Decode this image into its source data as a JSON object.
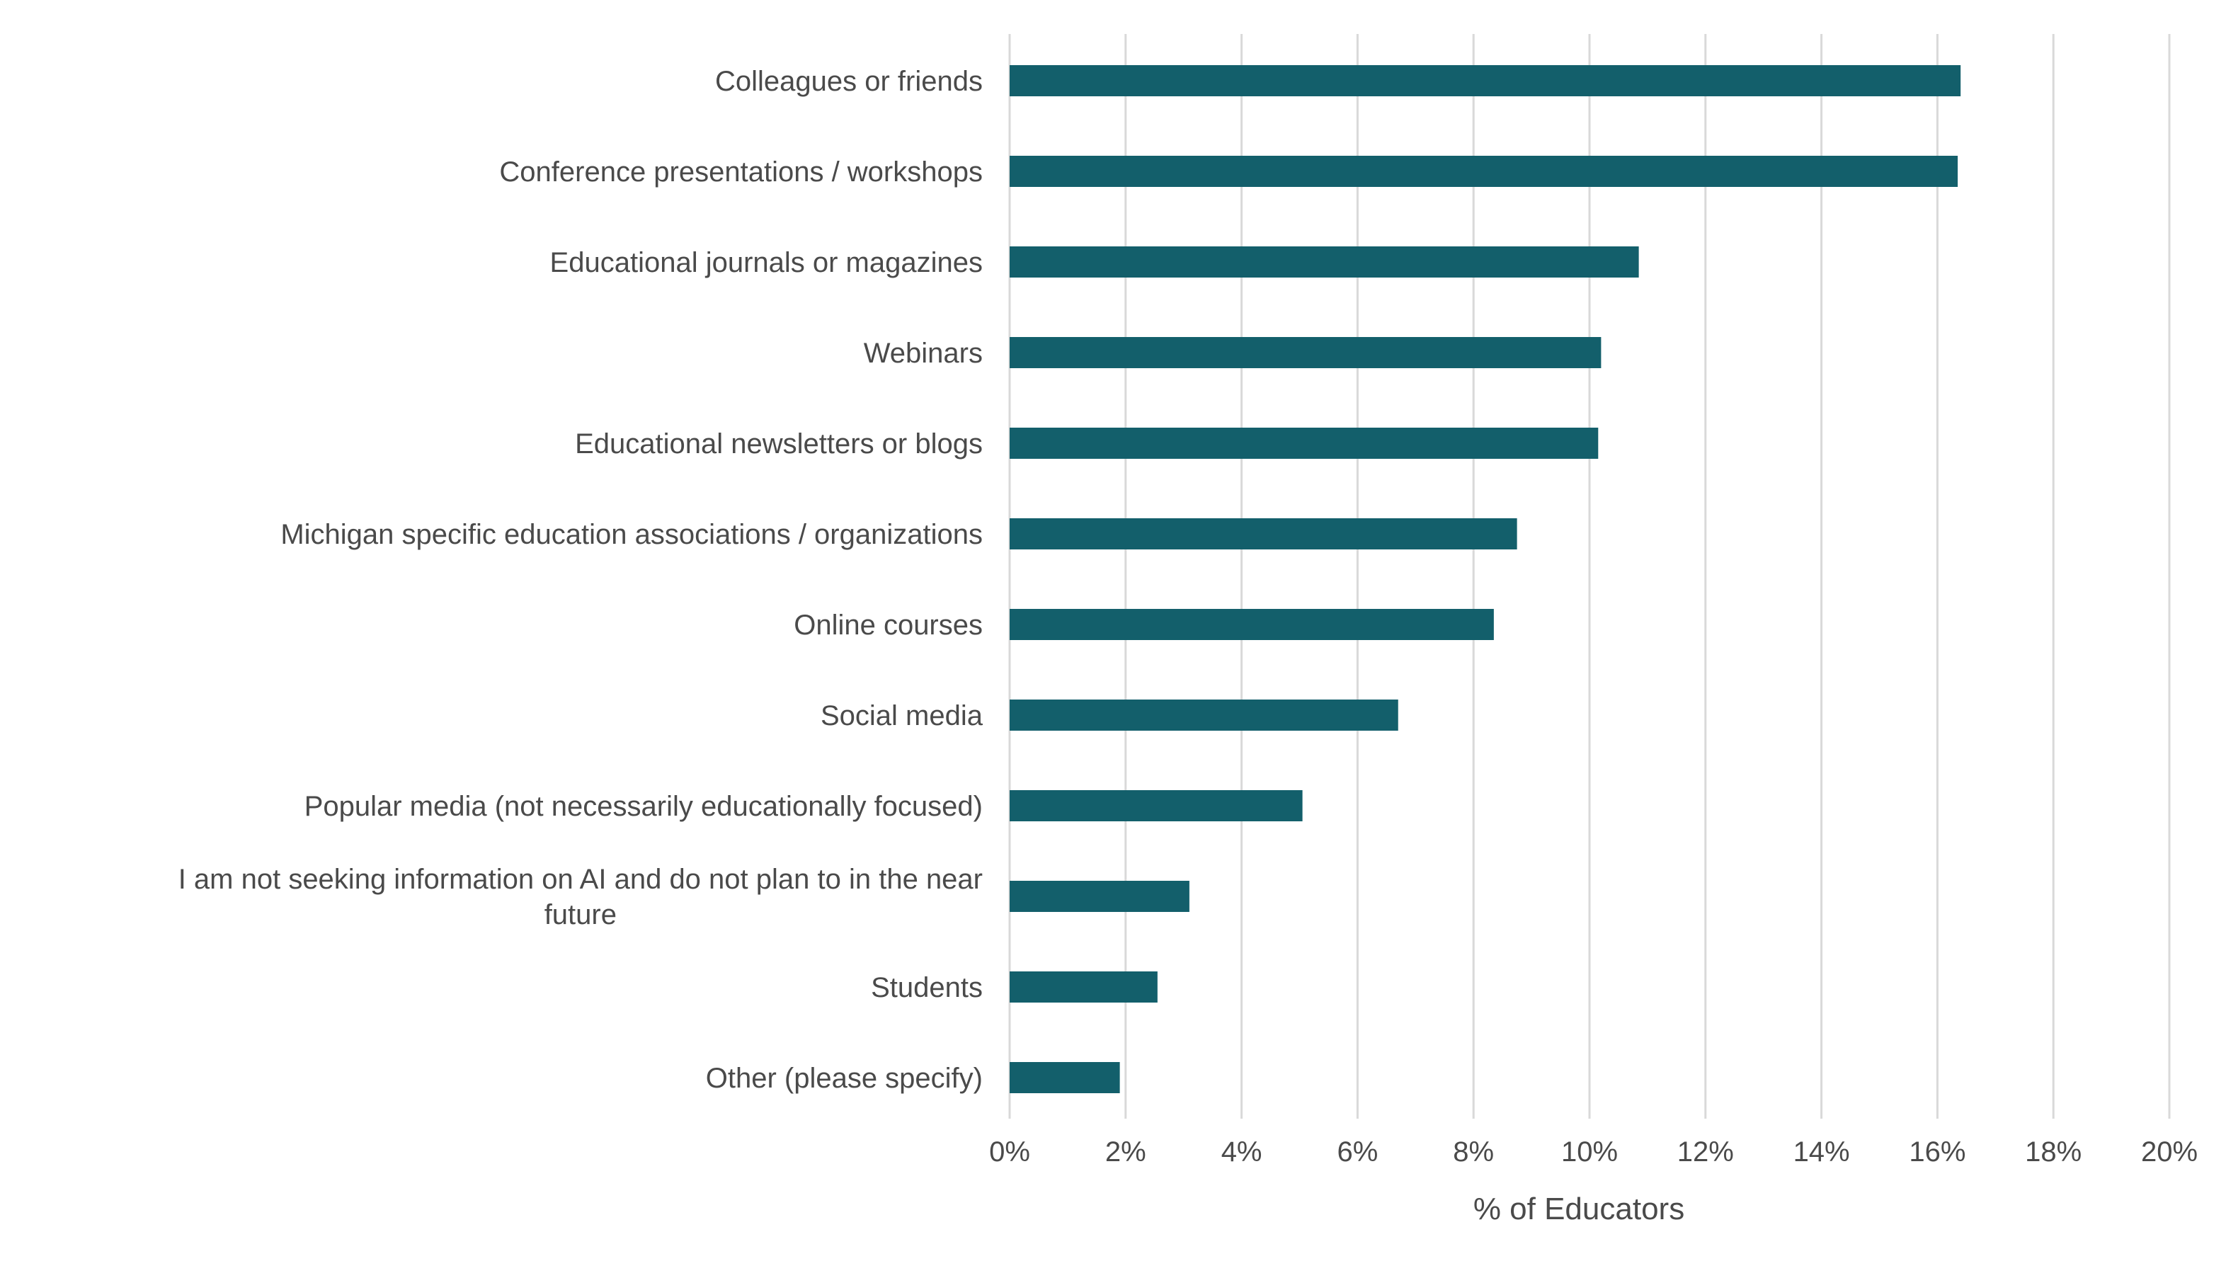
{
  "chart_data": {
    "type": "bar",
    "orientation": "horizontal",
    "categories": [
      "Colleagues or friends",
      "Conference presentations / workshops",
      "Educational journals or magazines",
      "Webinars",
      "Educational newsletters or blogs",
      "Michigan specific education associations / organizations",
      "Online courses",
      "Social media",
      "Popular media (not necessarily educationally focused)",
      "I am not seeking information on AI and do not plan to in the near future",
      "Students",
      "Other (please specify)"
    ],
    "category_lines": [
      [
        "Colleagues or friends"
      ],
      [
        "Conference presentations / workshops"
      ],
      [
        "Educational journals or magazines"
      ],
      [
        "Webinars"
      ],
      [
        "Educational newsletters or blogs"
      ],
      [
        "Michigan specific education associations / organizations"
      ],
      [
        "Online courses"
      ],
      [
        "Social media"
      ],
      [
        "Popular media (not necessarily educationally focused)"
      ],
      [
        "I am not seeking information on AI and do not plan to in the near",
        "future"
      ],
      [
        "Students"
      ],
      [
        "Other (please specify)"
      ]
    ],
    "values": [
      16.4,
      16.35,
      10.85,
      10.2,
      10.15,
      8.75,
      8.35,
      6.7,
      5.05,
      3.1,
      2.55,
      1.9
    ],
    "xlabel": "% of Educators",
    "ylabel": "",
    "xlim": [
      0,
      20
    ],
    "ticks": [
      0,
      2,
      4,
      6,
      8,
      10,
      12,
      14,
      16,
      18,
      20
    ],
    "tick_labels": [
      "0%",
      "2%",
      "4%",
      "6%",
      "8%",
      "10%",
      "12%",
      "14%",
      "16%",
      "18%",
      "20%"
    ],
    "grid": true,
    "legend": "none",
    "colors": {
      "bar": "#135f6b",
      "grid": "#d9d9d9",
      "text": "#4a4a4a"
    }
  }
}
